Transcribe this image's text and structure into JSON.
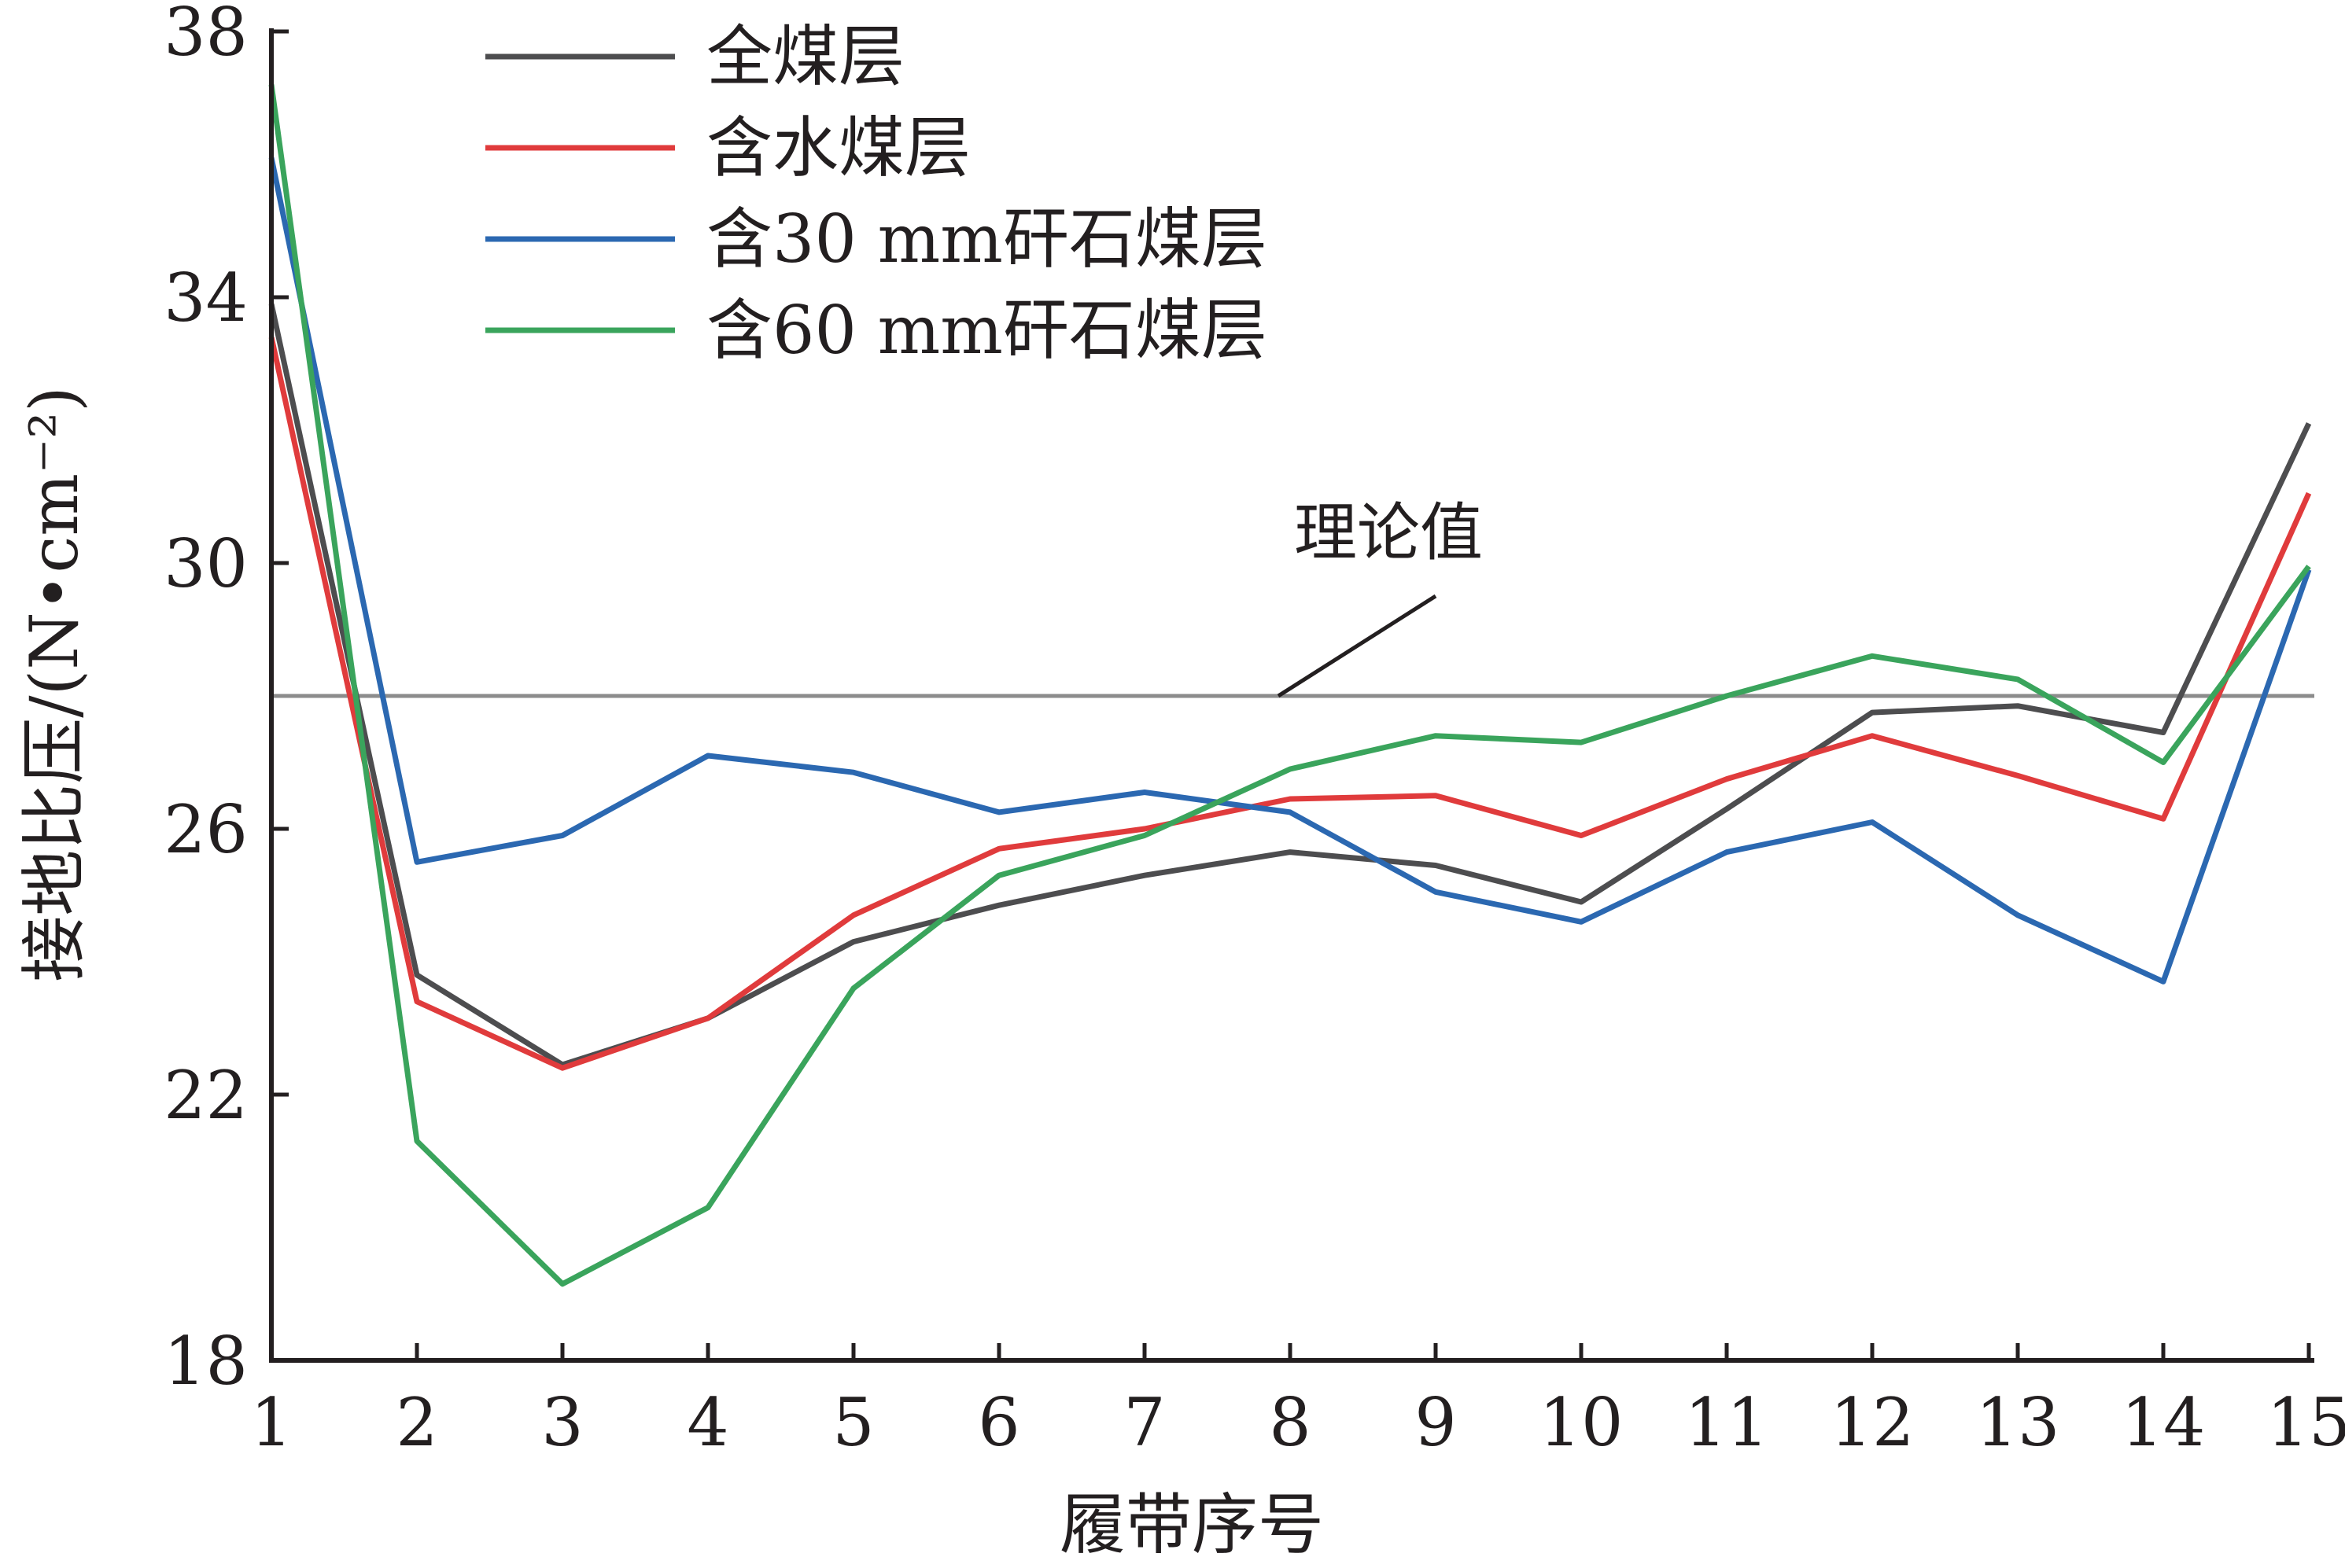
{
  "chart_data": {
    "type": "line",
    "title": "",
    "xlabel": "履带序号",
    "ylabel": "接地比压/(N•cm⁻²)",
    "x": [
      1,
      2,
      3,
      4,
      5,
      6,
      7,
      8,
      9,
      10,
      11,
      12,
      13,
      14,
      15
    ],
    "x_ticks": [
      "1",
      "2",
      "3",
      "4",
      "5",
      "6",
      "7",
      "8",
      "9",
      "10",
      "11",
      "12",
      "13",
      "14",
      "15"
    ],
    "ylim": [
      18,
      38
    ],
    "y_ticks": [
      "18",
      "22",
      "26",
      "30",
      "34",
      "38"
    ],
    "grid": false,
    "legend_position": "top-left",
    "series": [
      {
        "name": "全煤层",
        "color": "#4d4d4f",
        "values": [
          33.9,
          23.8,
          22.45,
          23.15,
          24.3,
          24.85,
          25.3,
          25.65,
          25.45,
          24.9,
          26.3,
          27.75,
          27.85,
          27.45,
          32.1
        ]
      },
      {
        "name": "含水煤层",
        "color": "#e03b3c",
        "values": [
          33.4,
          23.4,
          22.4,
          23.15,
          24.7,
          25.7,
          26.0,
          26.45,
          26.5,
          25.9,
          26.75,
          27.4,
          26.8,
          26.15,
          31.05
        ]
      },
      {
        "name": "含30 mm矸石煤层",
        "color": "#2b68b1",
        "values": [
          36.1,
          25.5,
          25.9,
          27.1,
          26.85,
          26.25,
          26.55,
          26.25,
          25.05,
          24.6,
          25.65,
          26.1,
          24.7,
          23.7,
          29.9
        ]
      },
      {
        "name": "含60 mm矸石煤层",
        "color": "#3aa45c",
        "values": [
          37.2,
          21.3,
          19.15,
          20.3,
          23.6,
          25.3,
          25.9,
          26.9,
          27.4,
          27.3,
          28.0,
          28.6,
          28.25,
          27.0,
          29.95
        ]
      }
    ],
    "reference_line": {
      "label": "理论值",
      "value": 28.0,
      "color": "#8c8c8c"
    }
  }
}
